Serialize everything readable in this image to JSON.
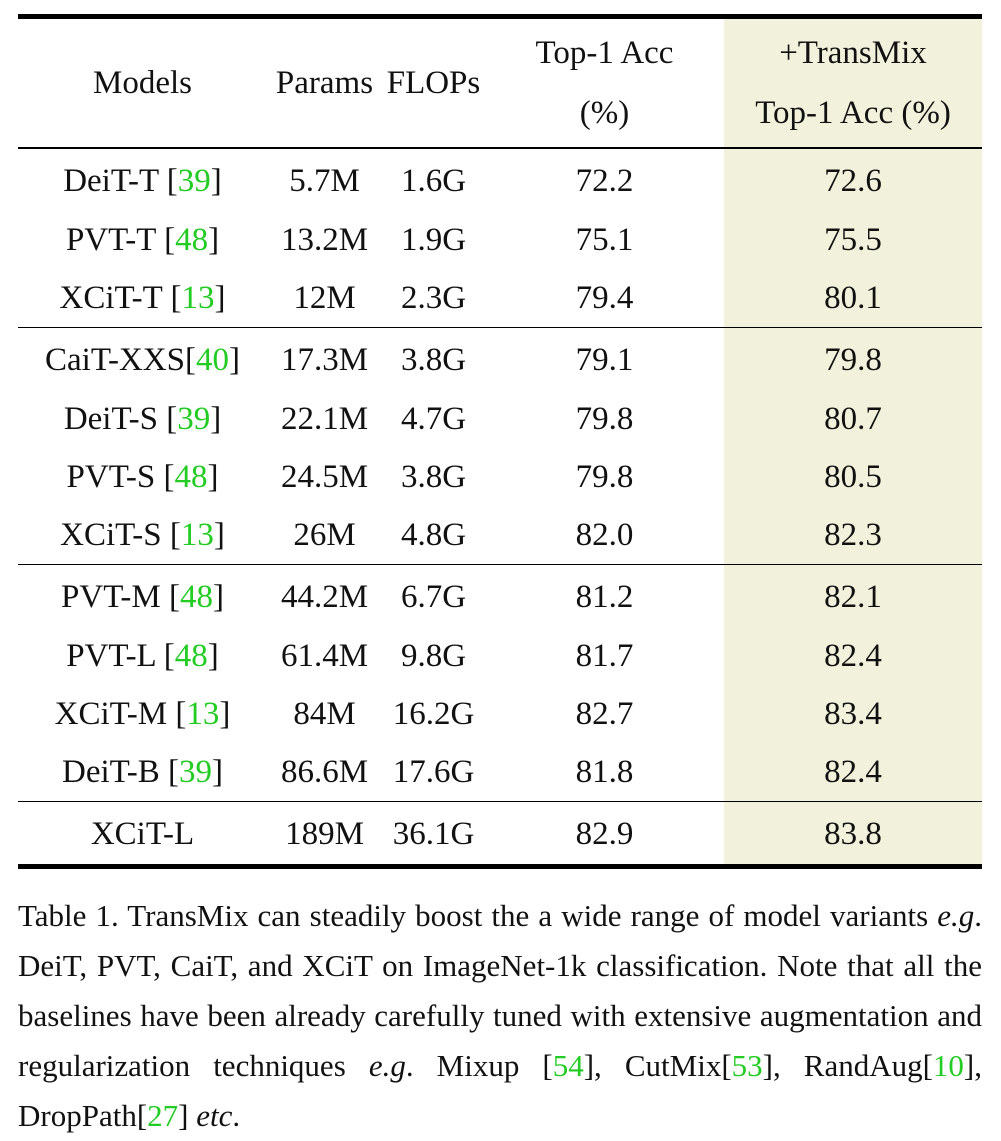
{
  "table": {
    "headers": {
      "models": "Models",
      "params": "Params",
      "flops": "FLOPs",
      "top1_line1": "Top-1 Acc",
      "top1_line2": "(%)",
      "transmix_line1": "+TransMix",
      "transmix_line2": "Top-1 Acc (%)"
    },
    "groups": [
      [
        {
          "model": "DeiT-T ",
          "cite": "39",
          "params": "5.7M",
          "flops": "1.6G",
          "top1": "72.2",
          "transmix": "72.6"
        },
        {
          "model": "PVT-T ",
          "cite": "48",
          "params": "13.2M",
          "flops": "1.9G",
          "top1": "75.1",
          "transmix": "75.5"
        },
        {
          "model": "XCiT-T ",
          "cite": "13",
          "params": "12M",
          "flops": "2.3G",
          "top1": "79.4",
          "transmix": "80.1"
        }
      ],
      [
        {
          "model": "CaiT-XXS",
          "cite": "40",
          "params": "17.3M",
          "flops": "3.8G",
          "top1": "79.1",
          "transmix": "79.8"
        },
        {
          "model": "DeiT-S ",
          "cite": "39",
          "params": "22.1M",
          "flops": "4.7G",
          "top1": "79.8",
          "transmix": "80.7"
        },
        {
          "model": "PVT-S ",
          "cite": "48",
          "params": "24.5M",
          "flops": "3.8G",
          "top1": "79.8",
          "transmix": "80.5"
        },
        {
          "model": "XCiT-S ",
          "cite": "13",
          "params": "26M",
          "flops": "4.8G",
          "top1": "82.0",
          "transmix": "82.3"
        }
      ],
      [
        {
          "model": "PVT-M ",
          "cite": "48",
          "params": "44.2M",
          "flops": "6.7G",
          "top1": "81.2",
          "transmix": "82.1"
        },
        {
          "model": "PVT-L ",
          "cite": "48",
          "params": "61.4M",
          "flops": "9.8G",
          "top1": "81.7",
          "transmix": "82.4"
        },
        {
          "model": "XCiT-M ",
          "cite": "13",
          "params": "84M",
          "flops": "16.2G",
          "top1": "82.7",
          "transmix": "83.4"
        },
        {
          "model": "DeiT-B ",
          "cite": "39",
          "params": "86.6M",
          "flops": "17.6G",
          "top1": "81.8",
          "transmix": "82.4"
        }
      ],
      [
        {
          "model": "XCiT-L",
          "cite": "",
          "params": "189M",
          "flops": "36.1G",
          "top1": "82.9",
          "transmix": "83.8"
        }
      ]
    ]
  },
  "caption": {
    "t1": "Table 1. TransMix can steadily boost the a wide range of model variants ",
    "eg1": "e.g",
    "t2": ". DeiT, PVT, CaiT, and XCiT on ImageNet-1k classi­fication. Note that all the baselines have been already carefully tuned with extensive augmentation and regularization techniques ",
    "eg2": "e.g",
    "t3": ". Mixup [",
    "c1": "54",
    "t4": "], CutMix[",
    "c2": "53",
    "t5": "], RandAug[",
    "c3": "10",
    "t6": "], DropPath[",
    "c4": "27",
    "t7": "] ",
    "etc": "etc",
    "t8": "."
  },
  "colors": {
    "highlight": "#f1f1dc",
    "citation": "#22cc22"
  }
}
